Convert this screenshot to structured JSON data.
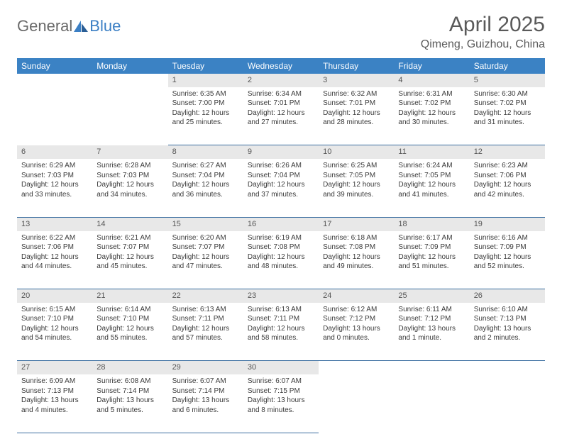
{
  "brand": {
    "first": "General",
    "second": "Blue"
  },
  "title": "April 2025",
  "location": "Qimeng, Guizhou, China",
  "colors": {
    "header_bg": "#3b82c4",
    "header_text": "#ffffff",
    "daynum_bg": "#e8e8e8",
    "cell_border": "#3b6ea0",
    "body_text": "#3a3a3a",
    "title_text": "#5a5a5a",
    "logo_gray": "#6a6a6a",
    "logo_blue": "#3b7fc4",
    "page_bg": "#ffffff"
  },
  "typography": {
    "title_fontsize": 30,
    "location_fontsize": 16,
    "header_fontsize": 12,
    "daynum_fontsize": 11,
    "cell_fontsize": 10
  },
  "weekdays": [
    "Sunday",
    "Monday",
    "Tuesday",
    "Wednesday",
    "Thursday",
    "Friday",
    "Saturday"
  ],
  "weeks": [
    [
      null,
      null,
      {
        "n": "1",
        "sr": "Sunrise: 6:35 AM",
        "ss": "Sunset: 7:00 PM",
        "dl": "Daylight: 12 hours and 25 minutes."
      },
      {
        "n": "2",
        "sr": "Sunrise: 6:34 AM",
        "ss": "Sunset: 7:01 PM",
        "dl": "Daylight: 12 hours and 27 minutes."
      },
      {
        "n": "3",
        "sr": "Sunrise: 6:32 AM",
        "ss": "Sunset: 7:01 PM",
        "dl": "Daylight: 12 hours and 28 minutes."
      },
      {
        "n": "4",
        "sr": "Sunrise: 6:31 AM",
        "ss": "Sunset: 7:02 PM",
        "dl": "Daylight: 12 hours and 30 minutes."
      },
      {
        "n": "5",
        "sr": "Sunrise: 6:30 AM",
        "ss": "Sunset: 7:02 PM",
        "dl": "Daylight: 12 hours and 31 minutes."
      }
    ],
    [
      {
        "n": "6",
        "sr": "Sunrise: 6:29 AM",
        "ss": "Sunset: 7:03 PM",
        "dl": "Daylight: 12 hours and 33 minutes."
      },
      {
        "n": "7",
        "sr": "Sunrise: 6:28 AM",
        "ss": "Sunset: 7:03 PM",
        "dl": "Daylight: 12 hours and 34 minutes."
      },
      {
        "n": "8",
        "sr": "Sunrise: 6:27 AM",
        "ss": "Sunset: 7:04 PM",
        "dl": "Daylight: 12 hours and 36 minutes."
      },
      {
        "n": "9",
        "sr": "Sunrise: 6:26 AM",
        "ss": "Sunset: 7:04 PM",
        "dl": "Daylight: 12 hours and 37 minutes."
      },
      {
        "n": "10",
        "sr": "Sunrise: 6:25 AM",
        "ss": "Sunset: 7:05 PM",
        "dl": "Daylight: 12 hours and 39 minutes."
      },
      {
        "n": "11",
        "sr": "Sunrise: 6:24 AM",
        "ss": "Sunset: 7:05 PM",
        "dl": "Daylight: 12 hours and 41 minutes."
      },
      {
        "n": "12",
        "sr": "Sunrise: 6:23 AM",
        "ss": "Sunset: 7:06 PM",
        "dl": "Daylight: 12 hours and 42 minutes."
      }
    ],
    [
      {
        "n": "13",
        "sr": "Sunrise: 6:22 AM",
        "ss": "Sunset: 7:06 PM",
        "dl": "Daylight: 12 hours and 44 minutes."
      },
      {
        "n": "14",
        "sr": "Sunrise: 6:21 AM",
        "ss": "Sunset: 7:07 PM",
        "dl": "Daylight: 12 hours and 45 minutes."
      },
      {
        "n": "15",
        "sr": "Sunrise: 6:20 AM",
        "ss": "Sunset: 7:07 PM",
        "dl": "Daylight: 12 hours and 47 minutes."
      },
      {
        "n": "16",
        "sr": "Sunrise: 6:19 AM",
        "ss": "Sunset: 7:08 PM",
        "dl": "Daylight: 12 hours and 48 minutes."
      },
      {
        "n": "17",
        "sr": "Sunrise: 6:18 AM",
        "ss": "Sunset: 7:08 PM",
        "dl": "Daylight: 12 hours and 49 minutes."
      },
      {
        "n": "18",
        "sr": "Sunrise: 6:17 AM",
        "ss": "Sunset: 7:09 PM",
        "dl": "Daylight: 12 hours and 51 minutes."
      },
      {
        "n": "19",
        "sr": "Sunrise: 6:16 AM",
        "ss": "Sunset: 7:09 PM",
        "dl": "Daylight: 12 hours and 52 minutes."
      }
    ],
    [
      {
        "n": "20",
        "sr": "Sunrise: 6:15 AM",
        "ss": "Sunset: 7:10 PM",
        "dl": "Daylight: 12 hours and 54 minutes."
      },
      {
        "n": "21",
        "sr": "Sunrise: 6:14 AM",
        "ss": "Sunset: 7:10 PM",
        "dl": "Daylight: 12 hours and 55 minutes."
      },
      {
        "n": "22",
        "sr": "Sunrise: 6:13 AM",
        "ss": "Sunset: 7:11 PM",
        "dl": "Daylight: 12 hours and 57 minutes."
      },
      {
        "n": "23",
        "sr": "Sunrise: 6:13 AM",
        "ss": "Sunset: 7:11 PM",
        "dl": "Daylight: 12 hours and 58 minutes."
      },
      {
        "n": "24",
        "sr": "Sunrise: 6:12 AM",
        "ss": "Sunset: 7:12 PM",
        "dl": "Daylight: 13 hours and 0 minutes."
      },
      {
        "n": "25",
        "sr": "Sunrise: 6:11 AM",
        "ss": "Sunset: 7:12 PM",
        "dl": "Daylight: 13 hours and 1 minute."
      },
      {
        "n": "26",
        "sr": "Sunrise: 6:10 AM",
        "ss": "Sunset: 7:13 PM",
        "dl": "Daylight: 13 hours and 2 minutes."
      }
    ],
    [
      {
        "n": "27",
        "sr": "Sunrise: 6:09 AM",
        "ss": "Sunset: 7:13 PM",
        "dl": "Daylight: 13 hours and 4 minutes."
      },
      {
        "n": "28",
        "sr": "Sunrise: 6:08 AM",
        "ss": "Sunset: 7:14 PM",
        "dl": "Daylight: 13 hours and 5 minutes."
      },
      {
        "n": "29",
        "sr": "Sunrise: 6:07 AM",
        "ss": "Sunset: 7:14 PM",
        "dl": "Daylight: 13 hours and 6 minutes."
      },
      {
        "n": "30",
        "sr": "Sunrise: 6:07 AM",
        "ss": "Sunset: 7:15 PM",
        "dl": "Daylight: 13 hours and 8 minutes."
      },
      null,
      null,
      null
    ]
  ]
}
